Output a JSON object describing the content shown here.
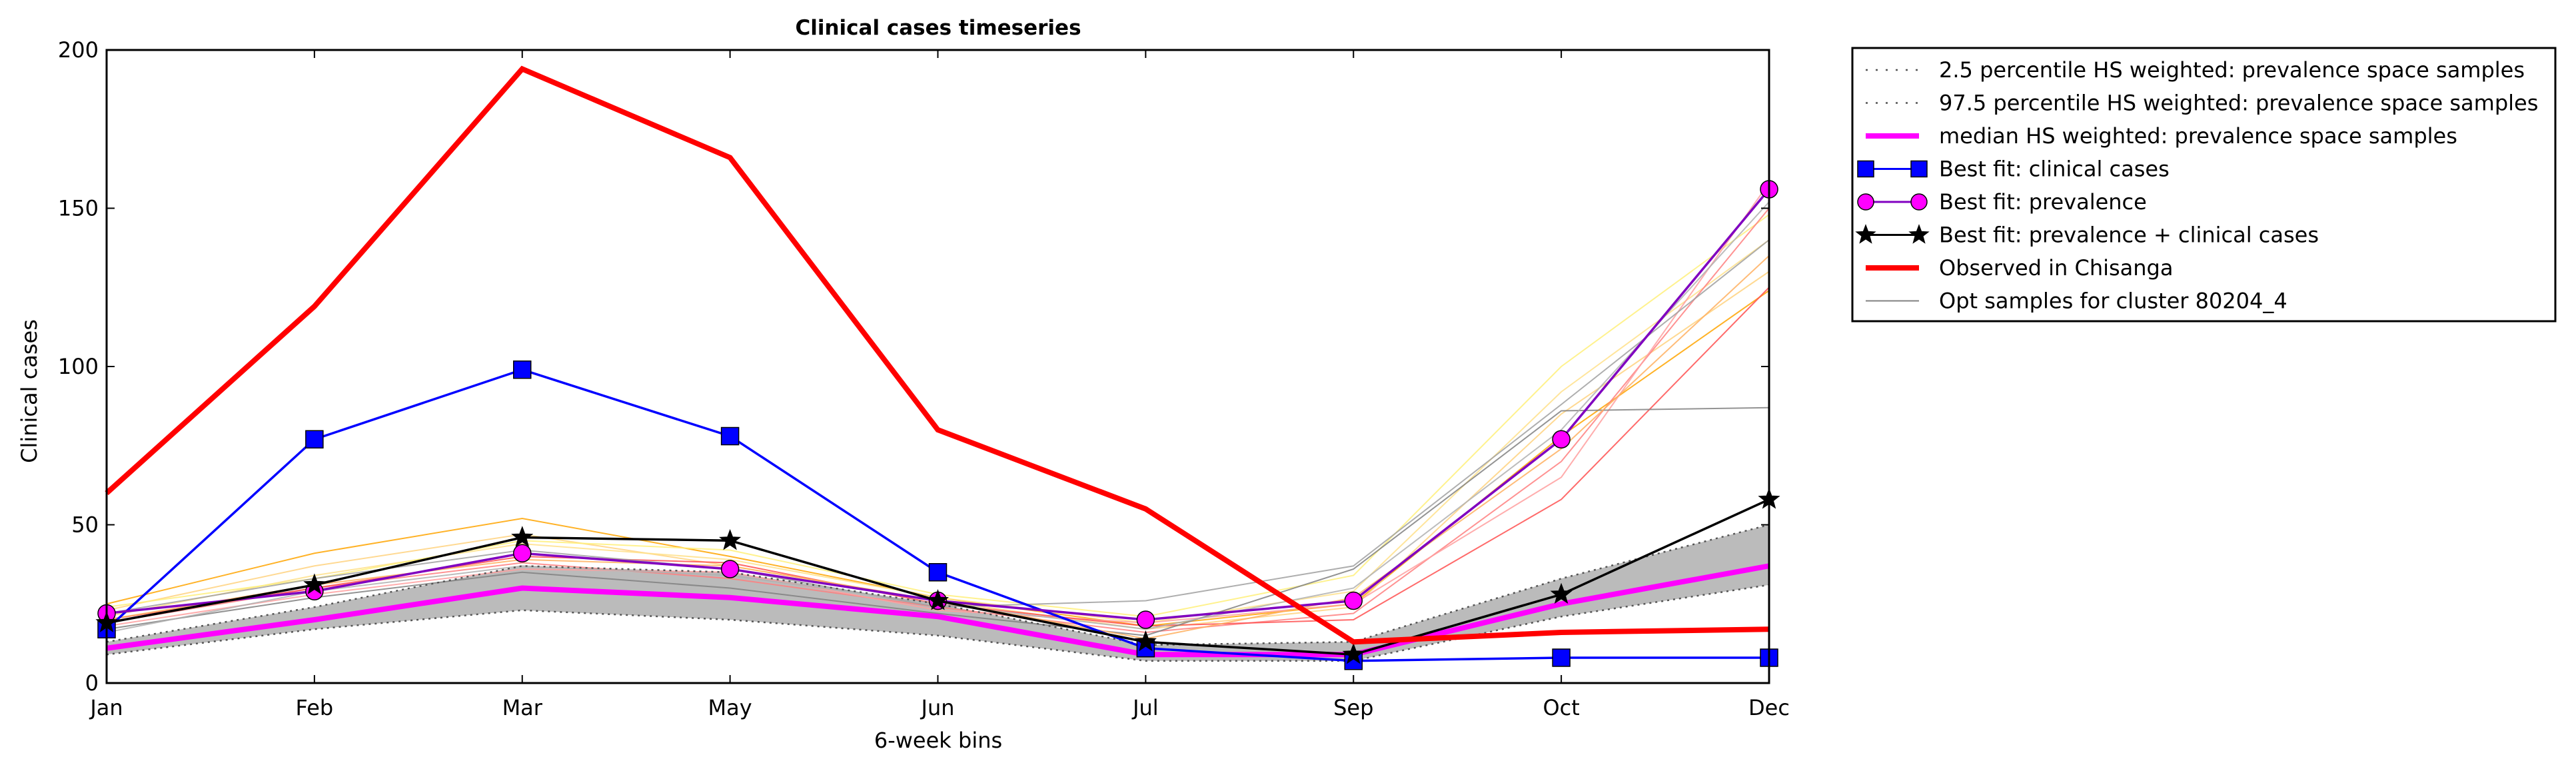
{
  "chart_data": {
    "type": "line",
    "title": "Clinical cases timeseries",
    "xlabel": "6-week bins",
    "ylabel": "Clinical cases",
    "categories": [
      "Jan",
      "Feb",
      "Mar",
      "May",
      "Jun",
      "Jul",
      "Sep",
      "Oct",
      "Dec"
    ],
    "ylim": [
      0,
      200
    ],
    "yticks": [
      0,
      50,
      100,
      150,
      200
    ],
    "grid": false,
    "legend_position": "outside-right-top",
    "band": {
      "lower": [
        9,
        17,
        23,
        20,
        15,
        7,
        7,
        21,
        31
      ],
      "upper": [
        13,
        24,
        37,
        35,
        25,
        12,
        13,
        33,
        50
      ],
      "color": "#bbbbbb"
    },
    "samples": [
      {
        "values": [
          25,
          41,
          52,
          40,
          27,
          18,
          25,
          78,
          124
        ],
        "color": "#ffa500"
      },
      {
        "values": [
          23,
          37,
          47,
          37,
          26,
          17,
          24,
          85,
          130
        ],
        "color": "#ffd27f"
      },
      {
        "values": [
          21,
          34,
          44,
          39,
          27,
          19,
          29,
          92,
          140
        ],
        "color": "#ffe08a"
      },
      {
        "values": [
          24,
          33,
          45,
          42,
          28,
          21,
          34,
          100,
          148
        ],
        "color": "#fff07a"
      },
      {
        "values": [
          19,
          30,
          38,
          33,
          24,
          16,
          22,
          70,
          150
        ],
        "color": "#ff7f7f"
      },
      {
        "values": [
          18,
          28,
          36,
          35,
          23,
          19,
          25,
          65,
          158
        ],
        "color": "#ff9f9f"
      },
      {
        "values": [
          20,
          30,
          40,
          38,
          25,
          18,
          20,
          58,
          125
        ],
        "color": "#ff5050"
      },
      {
        "values": [
          17,
          27,
          35,
          30,
          22,
          15,
          36,
          86,
          87
        ],
        "color": "#808080"
      },
      {
        "values": [
          22,
          33,
          42,
          36,
          24,
          26,
          37,
          88,
          140
        ],
        "color": "#a0a0a0"
      },
      {
        "values": [
          16,
          29,
          37,
          34,
          25,
          17,
          30,
          80,
          152
        ],
        "color": "#b0b0b0"
      },
      {
        "values": [
          20,
          31,
          39,
          37,
          26,
          14,
          27,
          74,
          135
        ],
        "color": "#ffb060"
      }
    ],
    "series": [
      {
        "name": "2.5 percentile HS weighted: prevalence space samples",
        "values": [
          9,
          17,
          23,
          20,
          15,
          7,
          7,
          21,
          31
        ],
        "color": "#555555",
        "style": "dotted",
        "marker": "none"
      },
      {
        "name": "97.5 percentile HS weighted: prevalence space samples",
        "values": [
          13,
          24,
          37,
          35,
          25,
          12,
          13,
          33,
          50
        ],
        "color": "#555555",
        "style": "dotted",
        "marker": "none"
      },
      {
        "name": "median HS weighted: prevalence space samples",
        "values": [
          11,
          20,
          30,
          27,
          21,
          9,
          9,
          25,
          37
        ],
        "color": "#ff00ff",
        "style": "solid",
        "marker": "none"
      },
      {
        "name": "Best fit: clinical cases",
        "values": [
          17,
          77,
          99,
          78,
          35,
          11,
          7,
          8,
          8
        ],
        "color": "#0000ff",
        "style": "solid",
        "marker": "square"
      },
      {
        "name": "Best fit: prevalence",
        "values": [
          22,
          29,
          41,
          36,
          26,
          20,
          26,
          77,
          156
        ],
        "color": "#8000c0",
        "style": "solid",
        "marker": "circle"
      },
      {
        "name": "Best fit: prevalence + clinical cases",
        "values": [
          19,
          31,
          46,
          45,
          26,
          13,
          9,
          28,
          58
        ],
        "color": "#000000",
        "style": "solid",
        "marker": "star"
      },
      {
        "name": "Observed in Chisanga",
        "values": [
          60,
          119,
          194,
          166,
          80,
          55,
          13,
          16,
          17
        ],
        "color": "#ff0000",
        "style": "solid",
        "marker": "none"
      },
      {
        "name": "Opt samples for cluster 80204_4",
        "values": null,
        "color": "#808080",
        "style": "solid",
        "marker": "none"
      }
    ]
  }
}
